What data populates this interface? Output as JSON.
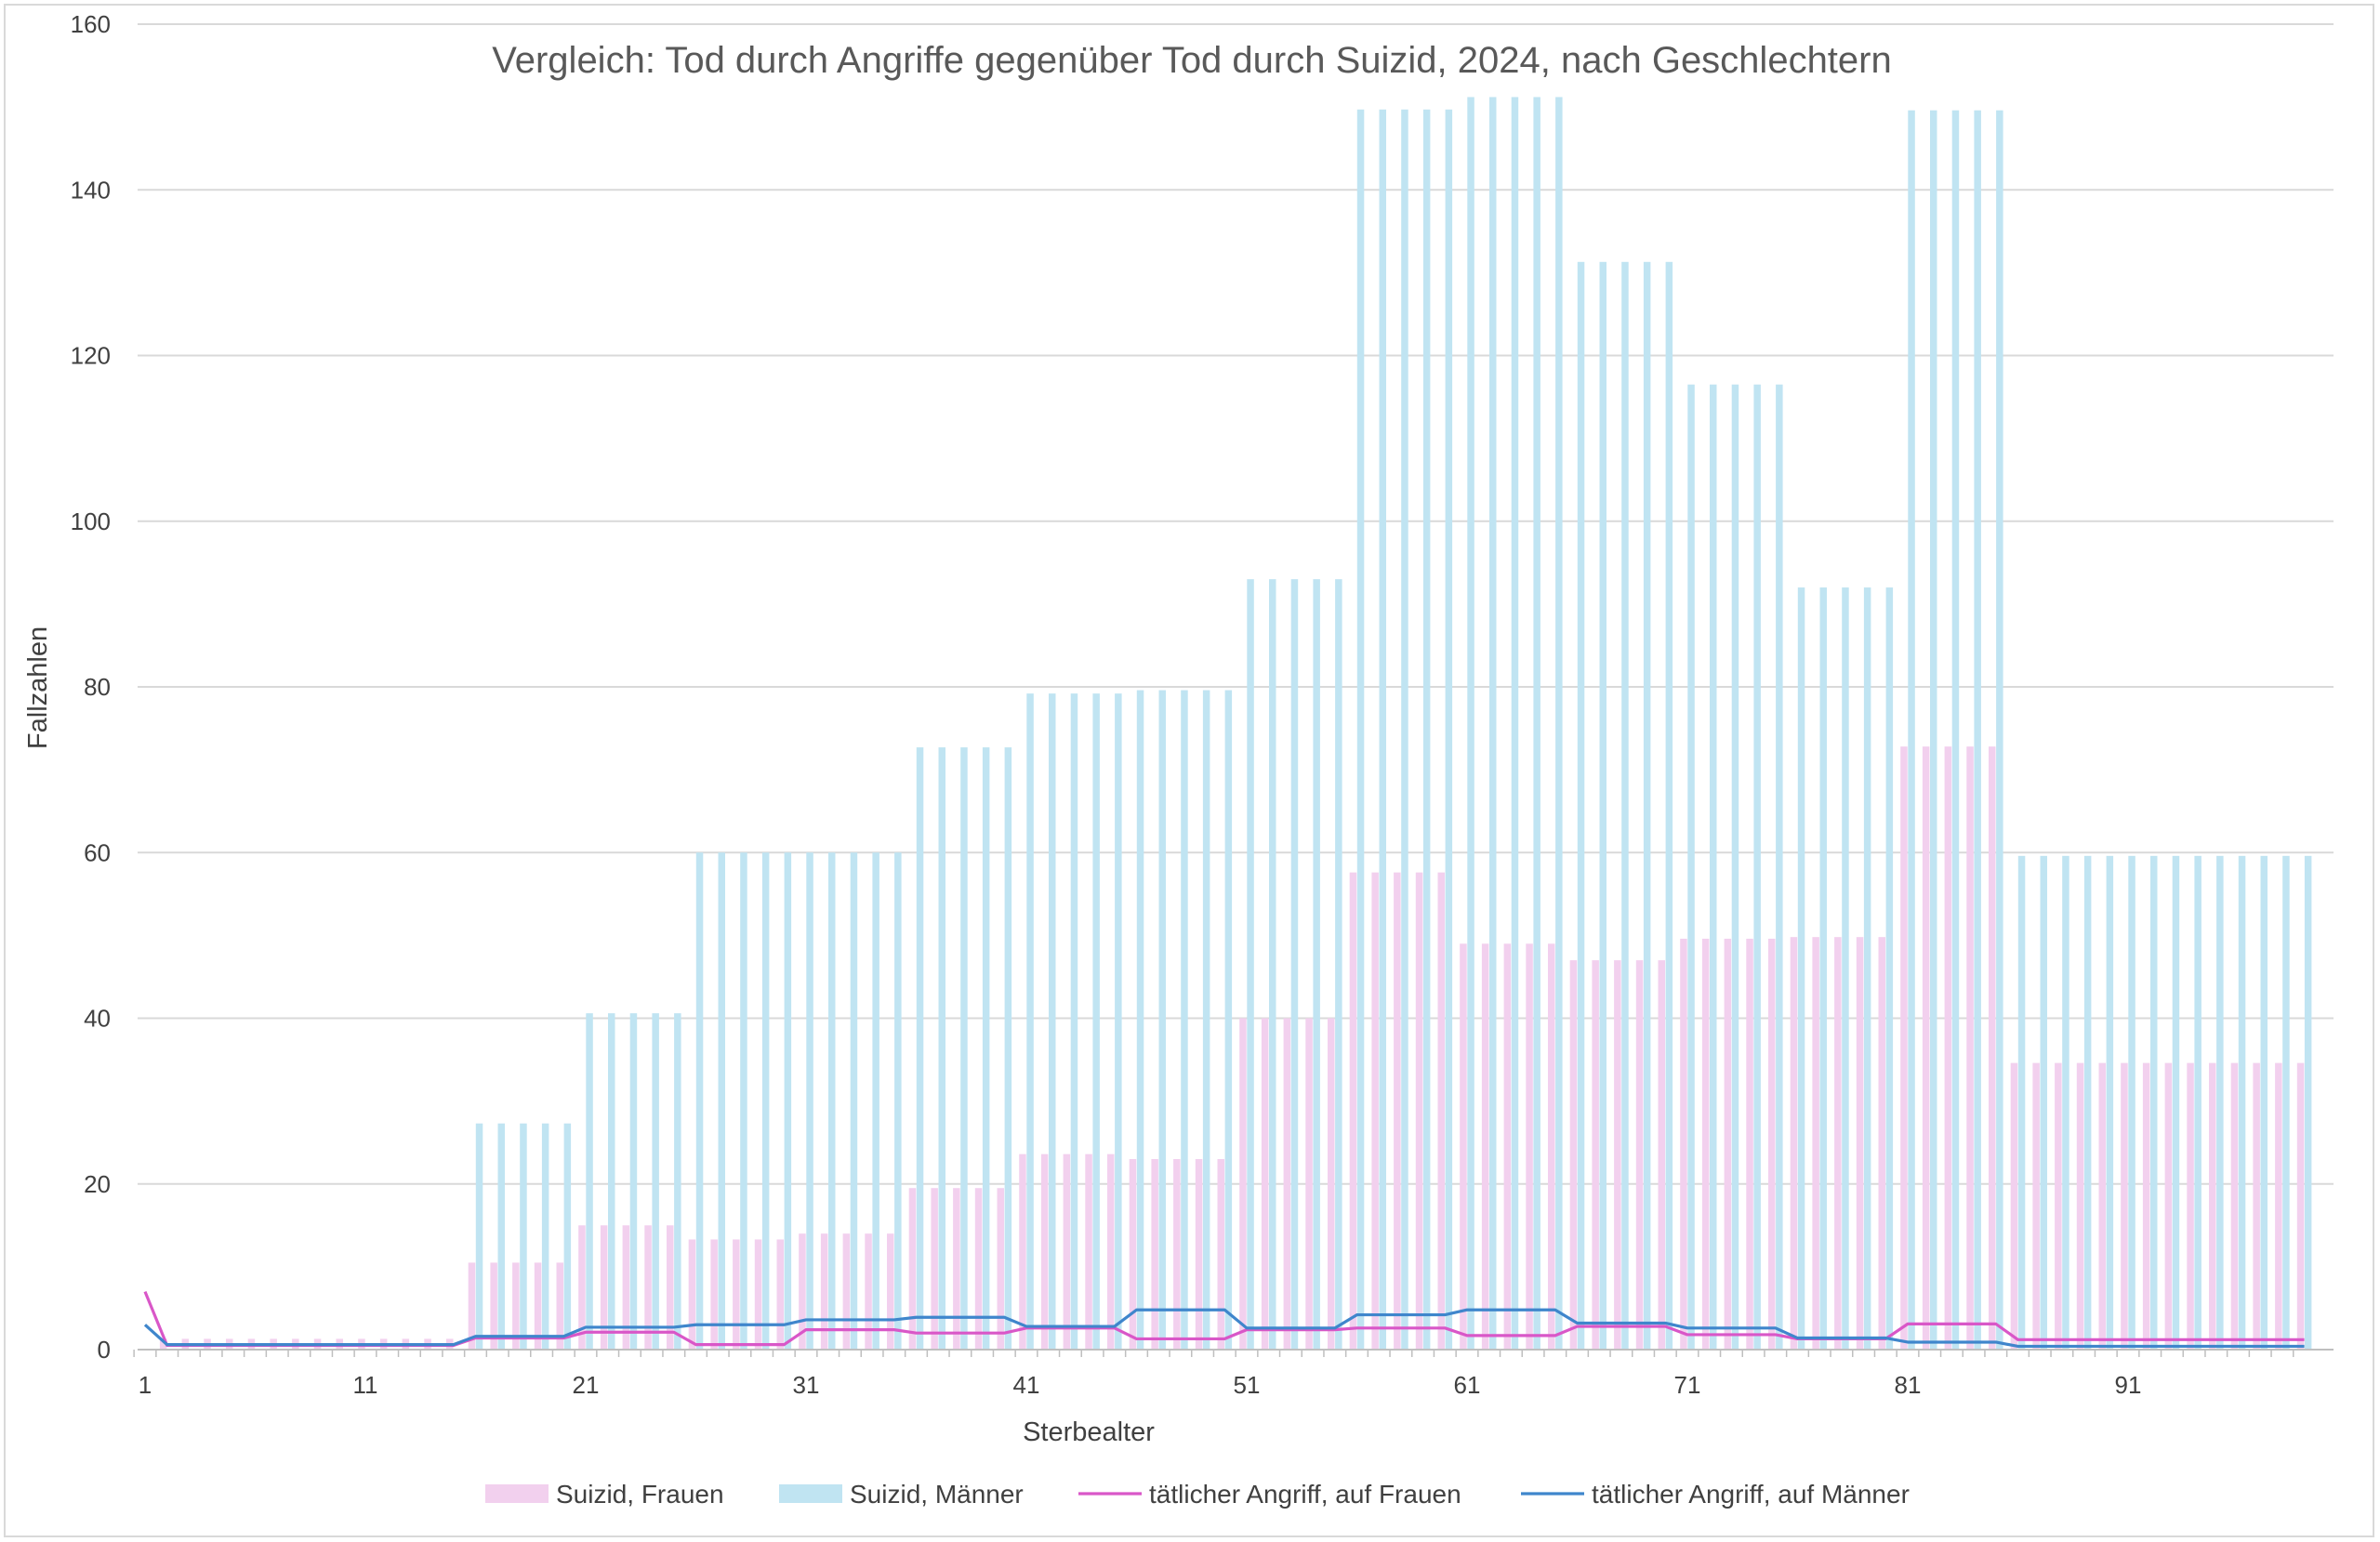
{
  "chart_data": {
    "type": "bar",
    "title": "Vergleich: Tod durch Angriffe gegenüber Tod durch Suizid, 2024, nach Geschlechtern",
    "xlabel": "Sterbealter",
    "ylabel": "Fallzahlen",
    "ylim": [
      0,
      160
    ],
    "yticks": [
      0,
      20,
      40,
      60,
      80,
      100,
      120,
      140,
      160
    ],
    "xticks": [
      "1",
      "11",
      "21",
      "31",
      "41",
      "51",
      "61",
      "71",
      "81",
      "91"
    ],
    "x_start_age": 1,
    "x_count": 99,
    "legend_position": "bottom",
    "grid": true,
    "colors": {
      "suizid_frauen": "#f2d0ee",
      "suizid_maenner": "#c0e4f2",
      "angriff_frauen": "#d957c8",
      "angriff_maenner": "#3f86cc",
      "grid": "#d9d9d9",
      "axis": "#bfbfbf"
    },
    "series": [
      {
        "name": "Suizid, Frauen",
        "kind": "bar",
        "color_key": "suizid_frauen",
        "groups": [
          {
            "from": 2,
            "to": 15,
            "value": 1.3
          },
          {
            "from": 16,
            "to": 20,
            "value": 10.5
          },
          {
            "from": 21,
            "to": 25,
            "value": 15
          },
          {
            "from": 26,
            "to": 30,
            "value": 13.3
          },
          {
            "from": 31,
            "to": 35,
            "value": 14
          },
          {
            "from": 36,
            "to": 40,
            "value": 19.5
          },
          {
            "from": 41,
            "to": 45,
            "value": 23.6
          },
          {
            "from": 46,
            "to": 50,
            "value": 23
          },
          {
            "from": 51,
            "to": 55,
            "value": 40
          },
          {
            "from": 56,
            "to": 60,
            "value": 57.6
          },
          {
            "from": 61,
            "to": 65,
            "value": 49
          },
          {
            "from": 66,
            "to": 70,
            "value": 47
          },
          {
            "from": 71,
            "to": 75,
            "value": 49.6
          },
          {
            "from": 76,
            "to": 80,
            "value": 49.8
          },
          {
            "from": 81,
            "to": 85,
            "value": 72.8
          },
          {
            "from": 86,
            "to": 99,
            "value": 34.6
          }
        ]
      },
      {
        "name": "Suizid, Männer",
        "kind": "bar",
        "color_key": "suizid_maenner",
        "groups": [
          {
            "from": 2,
            "to": 15,
            "value": 0
          },
          {
            "from": 16,
            "to": 20,
            "value": 27.3
          },
          {
            "from": 21,
            "to": 25,
            "value": 40.6
          },
          {
            "from": 26,
            "to": 30,
            "value": 60
          },
          {
            "from": 31,
            "to": 35,
            "value": 60
          },
          {
            "from": 36,
            "to": 40,
            "value": 72.7
          },
          {
            "from": 41,
            "to": 45,
            "value": 79.2
          },
          {
            "from": 46,
            "to": 50,
            "value": 79.6
          },
          {
            "from": 51,
            "to": 55,
            "value": 93
          },
          {
            "from": 56,
            "to": 60,
            "value": 149.7
          },
          {
            "from": 61,
            "to": 65,
            "value": 151.2
          },
          {
            "from": 66,
            "to": 70,
            "value": 131.3
          },
          {
            "from": 71,
            "to": 75,
            "value": 116.5
          },
          {
            "from": 76,
            "to": 80,
            "value": 92
          },
          {
            "from": 81,
            "to": 85,
            "value": 149.6
          },
          {
            "from": 86,
            "to": 99,
            "value": 59.6
          }
        ]
      },
      {
        "name": "tätlicher Angriff, auf Frauen",
        "kind": "line",
        "color_key": "angriff_frauen",
        "groups": [
          {
            "from": 1,
            "to": 1,
            "value": 7
          },
          {
            "from": 2,
            "to": 15,
            "value": 0.5
          },
          {
            "from": 16,
            "to": 20,
            "value": 1.4
          },
          {
            "from": 21,
            "to": 25,
            "value": 2.1
          },
          {
            "from": 26,
            "to": 30,
            "value": 0.6
          },
          {
            "from": 31,
            "to": 35,
            "value": 2.4
          },
          {
            "from": 36,
            "to": 40,
            "value": 2
          },
          {
            "from": 41,
            "to": 45,
            "value": 2.6
          },
          {
            "from": 46,
            "to": 50,
            "value": 1.3
          },
          {
            "from": 51,
            "to": 55,
            "value": 2.4
          },
          {
            "from": 56,
            "to": 60,
            "value": 2.6
          },
          {
            "from": 61,
            "to": 65,
            "value": 1.7
          },
          {
            "from": 66,
            "to": 70,
            "value": 2.8
          },
          {
            "from": 71,
            "to": 75,
            "value": 1.8
          },
          {
            "from": 76,
            "to": 80,
            "value": 1.3
          },
          {
            "from": 81,
            "to": 85,
            "value": 3.1
          },
          {
            "from": 86,
            "to": 99,
            "value": 1.2
          }
        ]
      },
      {
        "name": "tätlicher Angriff, auf Männer",
        "kind": "line",
        "color_key": "angriff_maenner",
        "groups": [
          {
            "from": 1,
            "to": 1,
            "value": 3
          },
          {
            "from": 2,
            "to": 15,
            "value": 0.6
          },
          {
            "from": 16,
            "to": 20,
            "value": 1.6
          },
          {
            "from": 21,
            "to": 25,
            "value": 2.7
          },
          {
            "from": 26,
            "to": 30,
            "value": 3
          },
          {
            "from": 31,
            "to": 35,
            "value": 3.6
          },
          {
            "from": 36,
            "to": 40,
            "value": 3.9
          },
          {
            "from": 41,
            "to": 45,
            "value": 2.8
          },
          {
            "from": 46,
            "to": 50,
            "value": 4.8
          },
          {
            "from": 51,
            "to": 55,
            "value": 2.6
          },
          {
            "from": 56,
            "to": 60,
            "value": 4.2
          },
          {
            "from": 61,
            "to": 65,
            "value": 4.8
          },
          {
            "from": 66,
            "to": 70,
            "value": 3.2
          },
          {
            "from": 71,
            "to": 75,
            "value": 2.6
          },
          {
            "from": 76,
            "to": 80,
            "value": 1.4
          },
          {
            "from": 81,
            "to": 85,
            "value": 0.9
          },
          {
            "from": 86,
            "to": 99,
            "value": 0.4
          }
        ]
      }
    ]
  }
}
